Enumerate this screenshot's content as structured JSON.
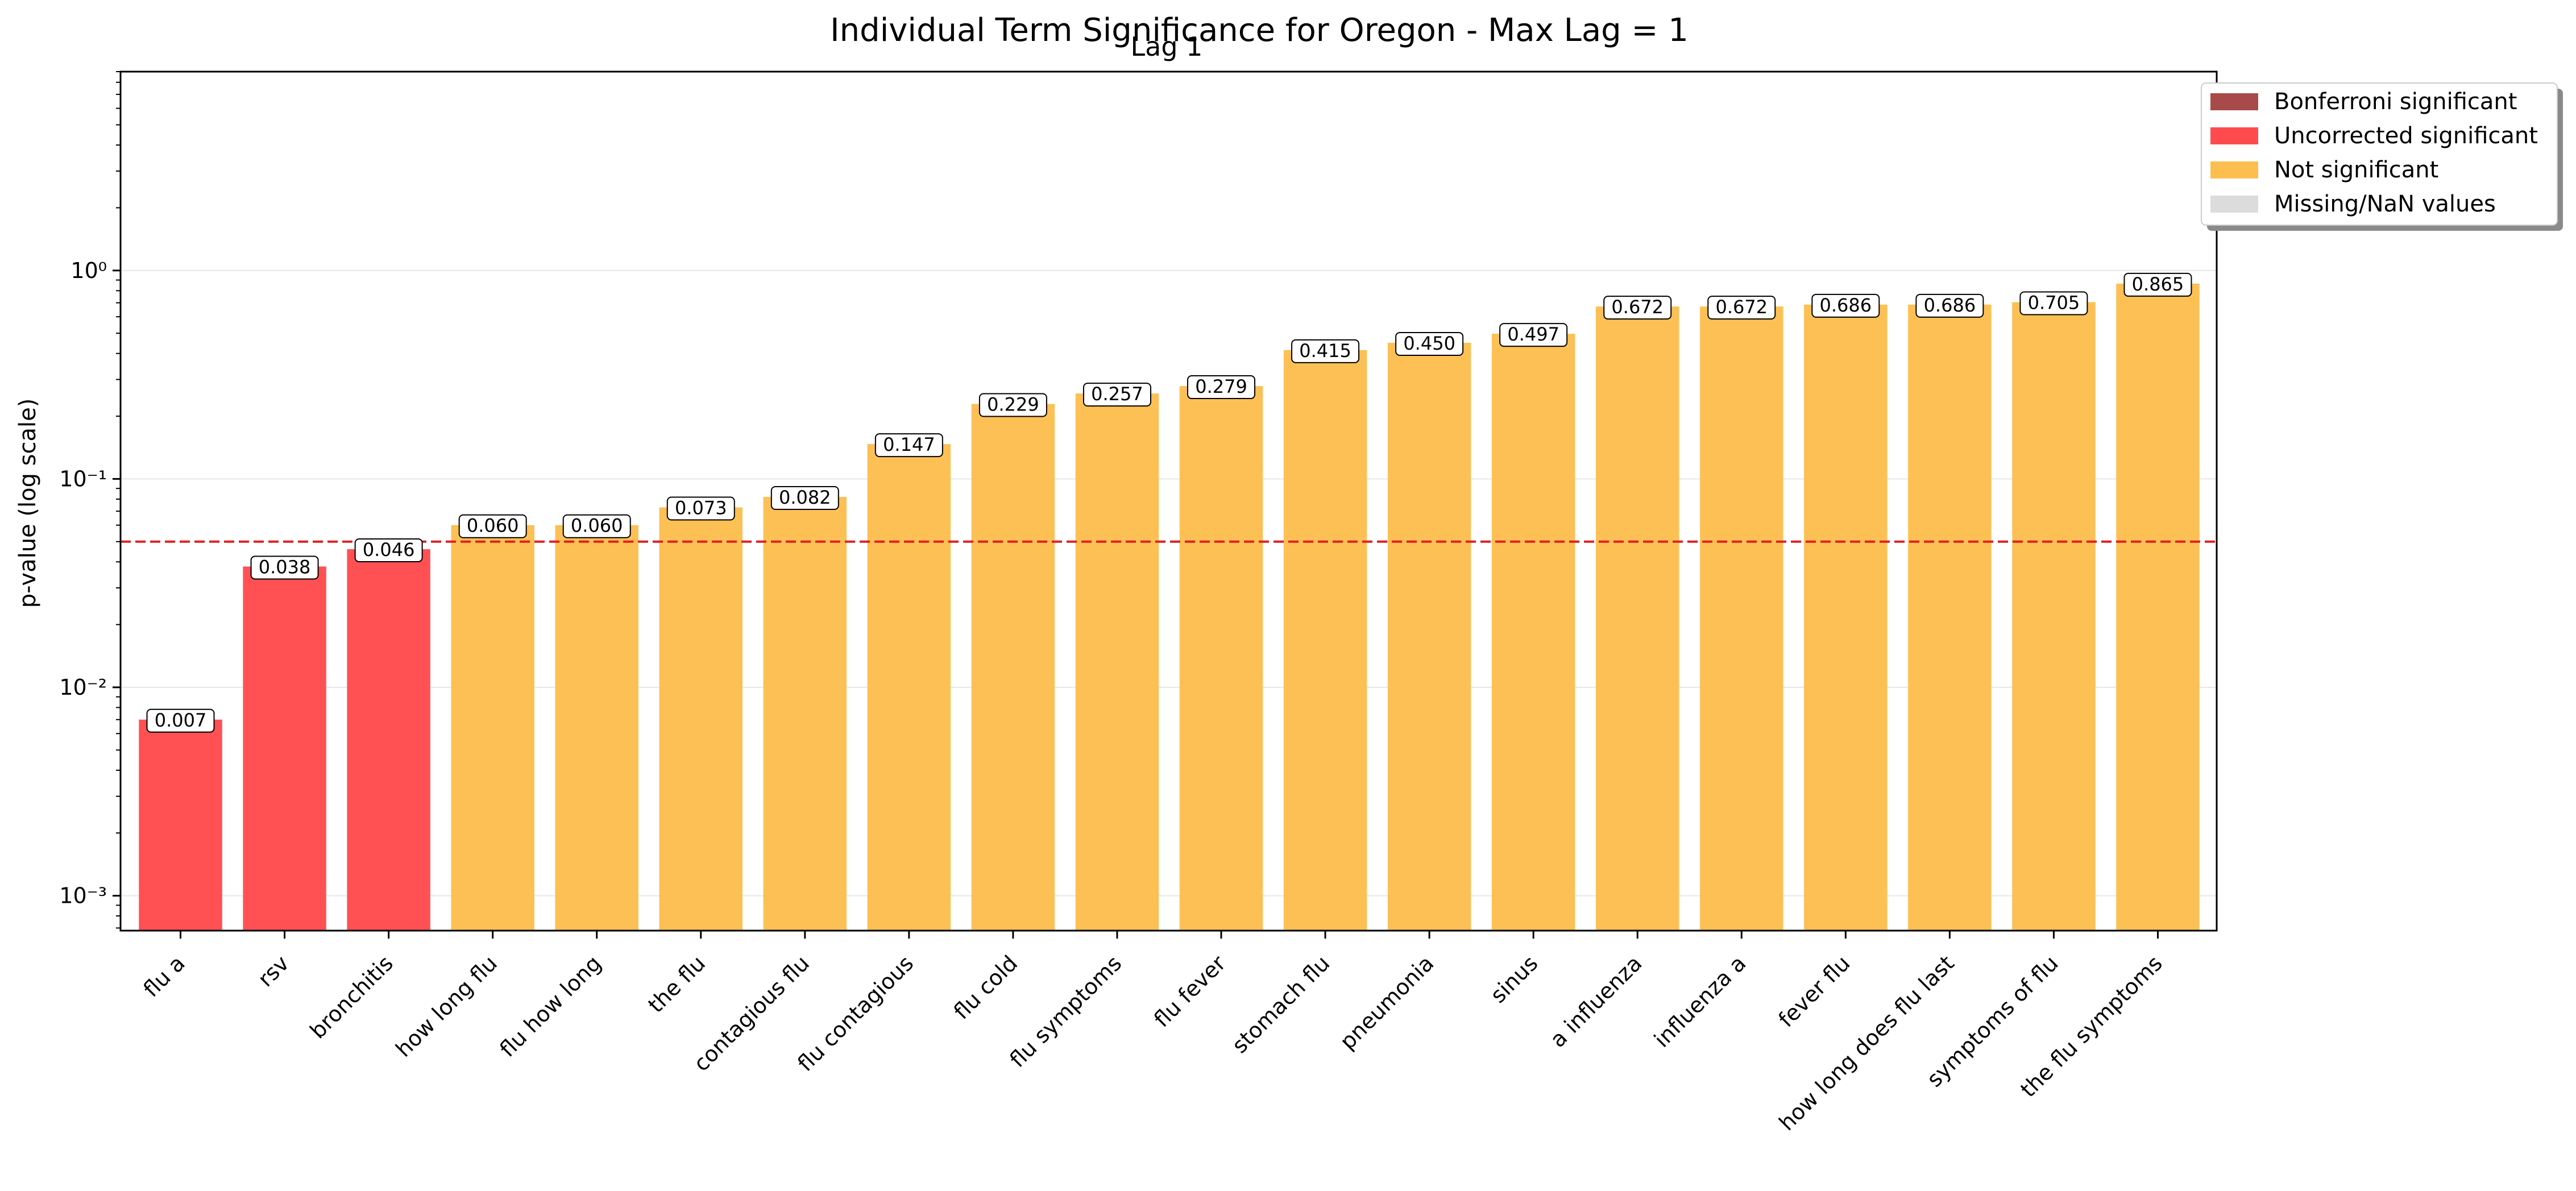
{
  "chart_data": {
    "type": "bar",
    "title": "Individual Term Significance for Oregon - Max Lag = 1",
    "subtitle": "Lag 1",
    "xlabel": "",
    "ylabel": "p-value (log scale)",
    "yscale": "log",
    "ylim": [
      0.00068,
      9
    ],
    "yticks": [
      {
        "value": 0.001,
        "label": "10⁻³"
      },
      {
        "value": 0.01,
        "label": "10⁻²"
      },
      {
        "value": 0.1,
        "label": "10⁻¹"
      },
      {
        "value": 1,
        "label": "10⁰"
      }
    ],
    "threshold": 0.05,
    "grid": true,
    "legend_position": "top-right outside",
    "legend": [
      {
        "label": "Bonferroni significant",
        "color": "#a94a4a"
      },
      {
        "label": "Uncorrected significant",
        "color": "#ff4b4e"
      },
      {
        "label": "Not significant",
        "color": "#fdbe50"
      },
      {
        "label": "Missing/NaN values",
        "color": "#dcdcdc"
      }
    ],
    "categories": [
      "flu a",
      "rsv",
      "bronchitis",
      "how long flu",
      "flu how long",
      "the flu",
      "contagious flu",
      "flu contagious",
      "flu cold",
      "flu symptoms",
      "flu fever",
      "stomach flu",
      "pneumonia",
      "sinus",
      "a influenza",
      "influenza a",
      "fever flu",
      "how long does flu last",
      "symptoms of flu",
      "the flu symptoms"
    ],
    "values": [
      0.007,
      0.038,
      0.046,
      0.06,
      0.06,
      0.073,
      0.082,
      0.147,
      0.229,
      0.257,
      0.279,
      0.415,
      0.45,
      0.497,
      0.672,
      0.672,
      0.686,
      0.686,
      0.705,
      0.865
    ],
    "value_labels": [
      "0.007",
      "0.038",
      "0.046",
      "0.060",
      "0.060",
      "0.073",
      "0.082",
      "0.147",
      "0.229",
      "0.257",
      "0.279",
      "0.415",
      "0.450",
      "0.497",
      "0.672",
      "0.672",
      "0.686",
      "0.686",
      "0.705",
      "0.865"
    ],
    "status": [
      "uncorrected",
      "uncorrected",
      "uncorrected",
      "not",
      "not",
      "not",
      "not",
      "not",
      "not",
      "not",
      "not",
      "not",
      "not",
      "not",
      "not",
      "not",
      "not",
      "not",
      "not",
      "not"
    ],
    "colors": {
      "uncorrected": "#ff4b4e",
      "not": "#fdbe50",
      "threshold_line": "#e02020"
    }
  }
}
